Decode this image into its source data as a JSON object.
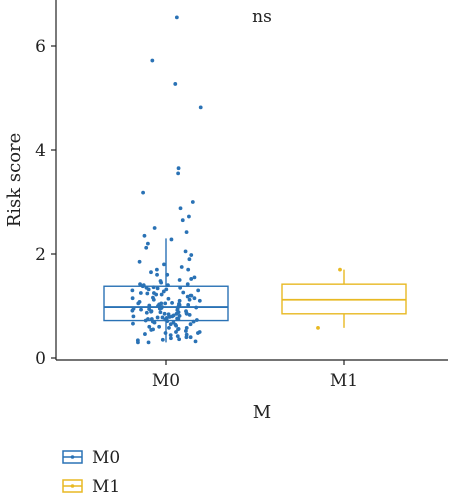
{
  "chart_data": {
    "type": "box",
    "annotation": "ns",
    "xlabel": "M",
    "ylabel": "Risk score",
    "ylim": [
      0,
      6.8
    ],
    "yticks": [
      0,
      2,
      4,
      6
    ],
    "categories": [
      "M0",
      "M1"
    ],
    "grid": false,
    "legend_position": "bottom-left",
    "series": [
      {
        "name": "M0",
        "color": "#2a72b5",
        "box": {
          "whisker_low": 0.3,
          "q1": 0.72,
          "median": 0.98,
          "q3": 1.38,
          "whisker_high": 2.3
        },
        "points": [
          6.55,
          5.72,
          5.27,
          4.82,
          3.65,
          3.55,
          3.18,
          3.0,
          2.88,
          2.72,
          2.65,
          2.5,
          2.42,
          2.35,
          2.28,
          2.2,
          2.12,
          2.05,
          1.98,
          1.9,
          1.85,
          1.8,
          1.75,
          1.7,
          1.65,
          1.6,
          1.55,
          1.52,
          1.48,
          1.45,
          1.42,
          1.4,
          1.38,
          1.36,
          1.34,
          1.32,
          1.3,
          1.28,
          1.26,
          1.24,
          1.22,
          1.2,
          1.18,
          1.16,
          1.14,
          1.12,
          1.1,
          1.08,
          1.06,
          1.05,
          1.04,
          1.03,
          1.02,
          1.01,
          1.0,
          0.99,
          0.98,
          0.97,
          0.96,
          0.95,
          0.94,
          0.93,
          0.92,
          0.91,
          0.9,
          0.89,
          0.88,
          0.87,
          0.86,
          0.85,
          0.84,
          0.83,
          0.82,
          0.81,
          0.8,
          0.79,
          0.78,
          0.77,
          0.76,
          0.75,
          0.74,
          0.73,
          0.72,
          0.71,
          0.7,
          0.68,
          0.66,
          0.64,
          0.62,
          0.6,
          0.58,
          0.56,
          0.54,
          0.52,
          0.5,
          0.48,
          0.46,
          0.44,
          0.42,
          0.4,
          0.38,
          0.36,
          0.34,
          0.32,
          0.3,
          0.3,
          0.35,
          0.45,
          0.55,
          0.65,
          0.75,
          0.85,
          0.95,
          1.05,
          1.15,
          1.25,
          1.35,
          1.02,
          0.9,
          1.1,
          0.8,
          1.2,
          0.7,
          1.3,
          0.6,
          1.4,
          0.5,
          1.0,
          0.95,
          1.05,
          0.85,
          1.15,
          0.75,
          1.25,
          0.65,
          1.35,
          0.55,
          0.98,
          1.12,
          0.88,
          1.22,
          0.78,
          1.32,
          0.68,
          1.42,
          0.58,
          0.48,
          1.5,
          1.6,
          1.7,
          0.4
        ]
      },
      {
        "name": "M1",
        "color": "#e8b923",
        "box": {
          "whisker_low": 0.58,
          "q1": 0.85,
          "median": 1.12,
          "q3": 1.42,
          "whisker_high": 1.7
        },
        "points": [
          1.7,
          0.58
        ]
      }
    ]
  },
  "legend": {
    "items": [
      {
        "label": "M0"
      },
      {
        "label": "M1"
      }
    ]
  }
}
